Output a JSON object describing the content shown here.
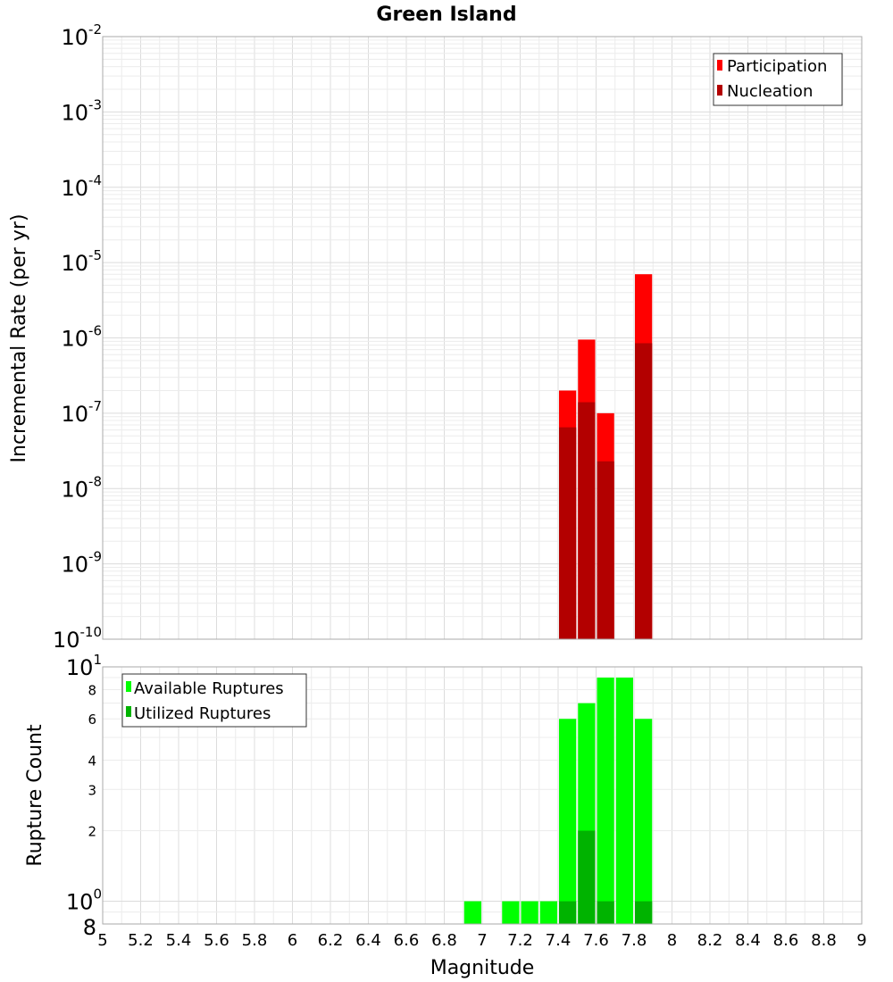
{
  "chart_data": [
    {
      "type": "bar",
      "title": "Green Island",
      "xlabel": "",
      "ylabel": "Incremental Rate (per yr)",
      "yscale": "log",
      "xlim": [
        5,
        9
      ],
      "ylim": [
        1e-10,
        0.01
      ],
      "bin_width": 0.1,
      "ytick_labels": [
        "10^-10",
        "10^-9",
        "10^-8",
        "10^-7",
        "10^-6",
        "10^-5",
        "10^-4",
        "10^-3",
        "10^-2"
      ],
      "legend": {
        "position": "top-right",
        "entries": [
          "Participation",
          "Nucleation"
        ]
      },
      "grid": true,
      "colors": {
        "Participation": "#ff0000",
        "Nucleation": "#b30000"
      },
      "series": [
        {
          "name": "Participation",
          "x": [
            7.45,
            7.55,
            7.65,
            7.85
          ],
          "values": [
            2e-07,
            9.5e-07,
            1e-07,
            7e-06
          ]
        },
        {
          "name": "Nucleation",
          "x": [
            7.45,
            7.55,
            7.65,
            7.85
          ],
          "values": [
            6.5e-08,
            1.4e-07,
            2.3e-08,
            8.5e-07
          ]
        }
      ]
    },
    {
      "type": "bar",
      "title": "",
      "xlabel": "Magnitude",
      "ylabel": "Rupture Count",
      "yscale": "log",
      "xlim": [
        5,
        9
      ],
      "ylim": [
        0.8,
        10
      ],
      "bin_width": 0.1,
      "ytick_labels": [
        "8",
        "10^0",
        "2",
        "3",
        "4",
        "6",
        "8",
        "10^1"
      ],
      "xticks": [
        "5",
        "5.2",
        "5.4",
        "5.6",
        "5.8",
        "6",
        "6.2",
        "6.4",
        "6.6",
        "6.8",
        "7",
        "7.2",
        "7.4",
        "7.6",
        "7.8",
        "8",
        "8.2",
        "8.4",
        "8.6",
        "8.8",
        "9"
      ],
      "legend": {
        "position": "top-left",
        "entries": [
          "Available Ruptures",
          "Utilized Ruptures"
        ]
      },
      "grid": true,
      "colors": {
        "Available Ruptures": "#00ff00",
        "Utilized Ruptures": "#00b300"
      },
      "series": [
        {
          "name": "Available Ruptures",
          "x": [
            6.95,
            7.15,
            7.25,
            7.35,
            7.45,
            7.55,
            7.65,
            7.75,
            7.85
          ],
          "values": [
            1,
            1,
            1,
            1,
            6,
            7,
            9,
            9,
            6
          ]
        },
        {
          "name": "Utilized Ruptures",
          "x": [
            7.45,
            7.55,
            7.65,
            7.85
          ],
          "values": [
            1,
            2,
            1,
            1
          ]
        }
      ]
    }
  ]
}
